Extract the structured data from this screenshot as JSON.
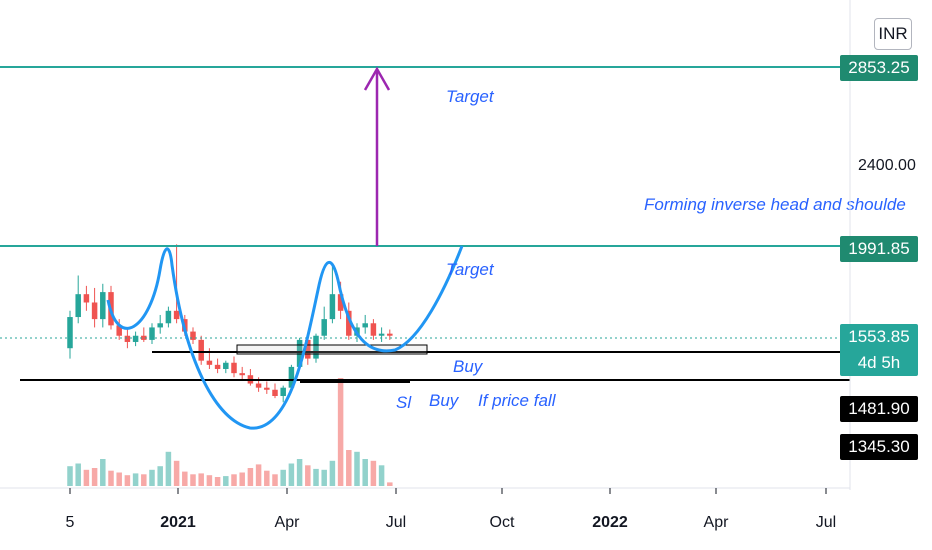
{
  "currency": "INR",
  "price_levels": {
    "target_top": "2853.25",
    "level_2400": "2400.00",
    "target_line": "1991.85",
    "last_price": "1553.85",
    "countdown": "4d 5h",
    "level_1481": "1481.90",
    "level_1345": "1345.30"
  },
  "annotations": {
    "target_upper": "Target",
    "target_lower": "Target",
    "pattern": "Forming inverse head and shoulde",
    "buy_upper": "Buy",
    "sl": "Sl",
    "buy_lower": "Buy",
    "if_price_fall": "If price fall"
  },
  "colors": {
    "up": "#26a69a",
    "down": "#ef5350",
    "target_line": "#26a69a",
    "arrow": "#9c27b0",
    "curve": "#2196f3",
    "annotation_text": "#2962ff"
  },
  "chart_data": {
    "type": "candlestick",
    "x_ticks": [
      "5",
      "2021",
      "Apr",
      "Jul",
      "Oct",
      "2022",
      "Apr",
      "Jul"
    ],
    "y_ticks": [
      "2400.00"
    ],
    "candles": [
      {
        "o": 1500,
        "h": 1680,
        "l": 1450,
        "c": 1650
      },
      {
        "o": 1650,
        "h": 1850,
        "l": 1620,
        "c": 1760
      },
      {
        "o": 1760,
        "h": 1800,
        "l": 1680,
        "c": 1720
      },
      {
        "o": 1720,
        "h": 1790,
        "l": 1600,
        "c": 1640
      },
      {
        "o": 1640,
        "h": 1810,
        "l": 1600,
        "c": 1770
      },
      {
        "o": 1770,
        "h": 1800,
        "l": 1590,
        "c": 1610
      },
      {
        "o": 1610,
        "h": 1640,
        "l": 1540,
        "c": 1560
      },
      {
        "o": 1560,
        "h": 1600,
        "l": 1500,
        "c": 1530
      },
      {
        "o": 1530,
        "h": 1580,
        "l": 1510,
        "c": 1560
      },
      {
        "o": 1560,
        "h": 1600,
        "l": 1530,
        "c": 1540
      },
      {
        "o": 1540,
        "h": 1620,
        "l": 1520,
        "c": 1600
      },
      {
        "o": 1600,
        "h": 1660,
        "l": 1570,
        "c": 1620
      },
      {
        "o": 1620,
        "h": 1700,
        "l": 1600,
        "c": 1680
      },
      {
        "o": 1680,
        "h": 2000,
        "l": 1620,
        "c": 1640
      },
      {
        "o": 1640,
        "h": 1660,
        "l": 1560,
        "c": 1580
      },
      {
        "o": 1580,
        "h": 1600,
        "l": 1520,
        "c": 1540
      },
      {
        "o": 1540,
        "h": 1560,
        "l": 1420,
        "c": 1440
      },
      {
        "o": 1440,
        "h": 1500,
        "l": 1400,
        "c": 1420
      },
      {
        "o": 1420,
        "h": 1450,
        "l": 1380,
        "c": 1400
      },
      {
        "o": 1400,
        "h": 1440,
        "l": 1380,
        "c": 1430
      },
      {
        "o": 1430,
        "h": 1460,
        "l": 1360,
        "c": 1380
      },
      {
        "o": 1380,
        "h": 1410,
        "l": 1350,
        "c": 1370
      },
      {
        "o": 1370,
        "h": 1400,
        "l": 1320,
        "c": 1330
      },
      {
        "o": 1330,
        "h": 1360,
        "l": 1290,
        "c": 1310
      },
      {
        "o": 1310,
        "h": 1340,
        "l": 1280,
        "c": 1300
      },
      {
        "o": 1300,
        "h": 1330,
        "l": 1260,
        "c": 1270
      },
      {
        "o": 1270,
        "h": 1320,
        "l": 1240,
        "c": 1310
      },
      {
        "o": 1310,
        "h": 1420,
        "l": 1300,
        "c": 1410
      },
      {
        "o": 1410,
        "h": 1550,
        "l": 1400,
        "c": 1540
      },
      {
        "o": 1540,
        "h": 1560,
        "l": 1420,
        "c": 1450
      },
      {
        "o": 1450,
        "h": 1570,
        "l": 1430,
        "c": 1560
      },
      {
        "o": 1560,
        "h": 1700,
        "l": 1540,
        "c": 1640
      },
      {
        "o": 1640,
        "h": 1900,
        "l": 1620,
        "c": 1760
      },
      {
        "o": 1760,
        "h": 1820,
        "l": 1640,
        "c": 1680
      },
      {
        "o": 1680,
        "h": 1720,
        "l": 1540,
        "c": 1560
      },
      {
        "o": 1560,
        "h": 1620,
        "l": 1530,
        "c": 1600
      },
      {
        "o": 1600,
        "h": 1660,
        "l": 1570,
        "c": 1620
      },
      {
        "o": 1620,
        "h": 1640,
        "l": 1540,
        "c": 1560
      },
      {
        "o": 1560,
        "h": 1600,
        "l": 1530,
        "c": 1570
      },
      {
        "o": 1570,
        "h": 1590,
        "l": 1540,
        "c": 1560
      }
    ],
    "volume": [
      22,
      25,
      18,
      20,
      30,
      17,
      15,
      12,
      14,
      13,
      18,
      22,
      38,
      28,
      16,
      13,
      14,
      12,
      10,
      11,
      13,
      15,
      20,
      24,
      17,
      13,
      18,
      25,
      30,
      23,
      19,
      18,
      28,
      120,
      40,
      38,
      30,
      28,
      23,
      4
    ]
  }
}
